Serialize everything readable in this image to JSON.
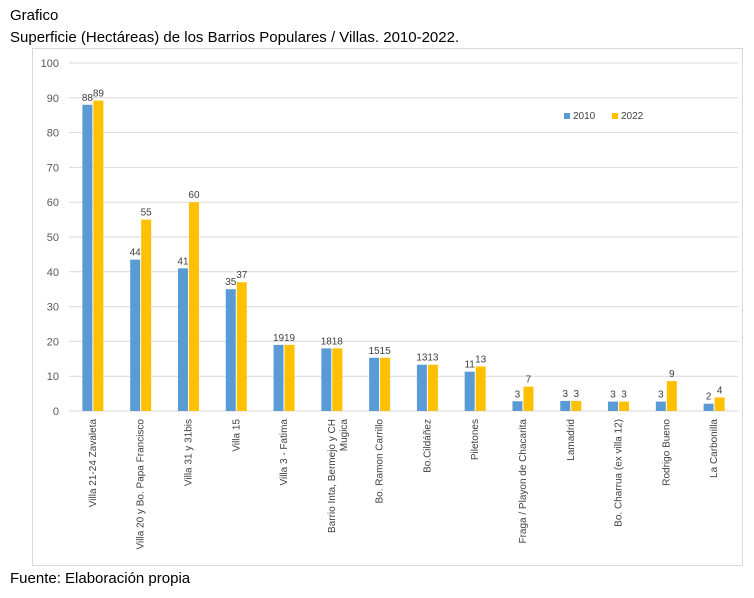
{
  "heading": {
    "label": "Grafico",
    "title": "Superficie (Hectáreas) de los Barrios Populares / Villas. 2010-2022.",
    "source": "Fuente: Elaboración propia"
  },
  "colors": {
    "s2010": "#5b9bd5",
    "s2022": "#ffc000",
    "grid": "#d9d9d9"
  },
  "chart_data": {
    "type": "bar",
    "title": "",
    "xlabel": "",
    "ylabel": "",
    "ylim": [
      0,
      100
    ],
    "yticks": [
      0,
      10,
      20,
      30,
      40,
      50,
      60,
      70,
      80,
      90,
      100
    ],
    "grid": true,
    "legend_position": "top-right",
    "categories": [
      "Villa 21-24 Zavaleta",
      "Villa 20 y Bo. Papa Francisco",
      "Villa 31 y 31bis",
      "Villa 15",
      "Villa 3 - Fatima",
      "Barrio Inta, Bermejo y CH Mugica",
      "Bo. Ramon Carrillo",
      "Bo.Cildáñez",
      "Piletones",
      "Fraga / Playon de Chacarita",
      "Lamadrid",
      "Bo. Charrua (ex villa 12)",
      "Rodrigo Bueno",
      "La Carbonilla"
    ],
    "category_lines": [
      [
        "Villa 21-24 Zavaleta"
      ],
      [
        "Villa 20 y Bo. Papa Francisco"
      ],
      [
        "Villa 31 y 31bis"
      ],
      [
        "Villa 15"
      ],
      [
        "Villa 3 - Fatima"
      ],
      [
        "Barrio Inta, Bermejo y CH",
        "Mugica"
      ],
      [
        "Bo. Ramon Carrillo"
      ],
      [
        "Bo.Cildáñez"
      ],
      [
        "Piletones"
      ],
      [
        "Fraga / Playon de Chacarita"
      ],
      [
        "Lamadrid"
      ],
      [
        "Bo. Charrua (ex villa 12)"
      ],
      [
        "Rodrigo Bueno"
      ],
      [
        "La Carbonilla"
      ]
    ],
    "series": [
      {
        "name": "2010",
        "values": [
          88,
          43.5,
          41,
          35,
          19,
          18,
          15.3,
          13.3,
          11.3,
          2.8,
          2.9,
          2.7,
          2.7,
          2.1
        ],
        "labels": [
          "88",
          "44",
          "41",
          "35",
          "19",
          "18",
          "15",
          "13",
          "11",
          "3",
          "3",
          "3",
          "3",
          "2"
        ]
      },
      {
        "name": "2022",
        "values": [
          89.2,
          55,
          60,
          37,
          19,
          18,
          15.3,
          13.3,
          12.8,
          7,
          2.9,
          2.7,
          8.6,
          3.9
        ],
        "labels": [
          "89",
          "55",
          "60",
          "37",
          "19",
          "18",
          "15",
          "13",
          "13",
          "7",
          "3",
          "3",
          "9",
          "4"
        ]
      }
    ]
  }
}
